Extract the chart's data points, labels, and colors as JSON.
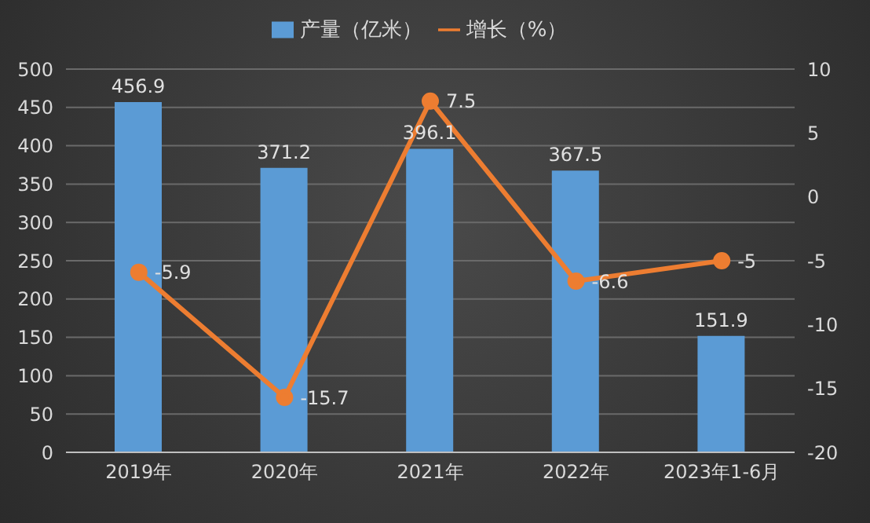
{
  "chart_data": {
    "type": "bar",
    "categories": [
      "2019年",
      "2020年",
      "2021年",
      "2022年",
      "2023年1-6月"
    ],
    "series": [
      {
        "name": "产量（亿米）",
        "color": "#5b9bd5",
        "values": [
          456.9,
          371.2,
          396.1,
          367.5,
          151.9
        ]
      },
      {
        "name": "增长（%）",
        "type": "line",
        "axis": "y2",
        "color": "#ed7d31",
        "values": [
          -5.9,
          -15.7,
          7.5,
          -6.6,
          -5
        ]
      }
    ],
    "ylim": [
      0,
      500
    ],
    "yticks": [
      0,
      50,
      100,
      150,
      200,
      250,
      300,
      350,
      400,
      450,
      500
    ],
    "y2lim": [
      -20,
      10
    ],
    "y2ticks": [
      -20,
      -15,
      -10,
      -5,
      0,
      5,
      10
    ],
    "grid": "y",
    "legend": "top",
    "data_labels": true,
    "marker": "circle"
  }
}
